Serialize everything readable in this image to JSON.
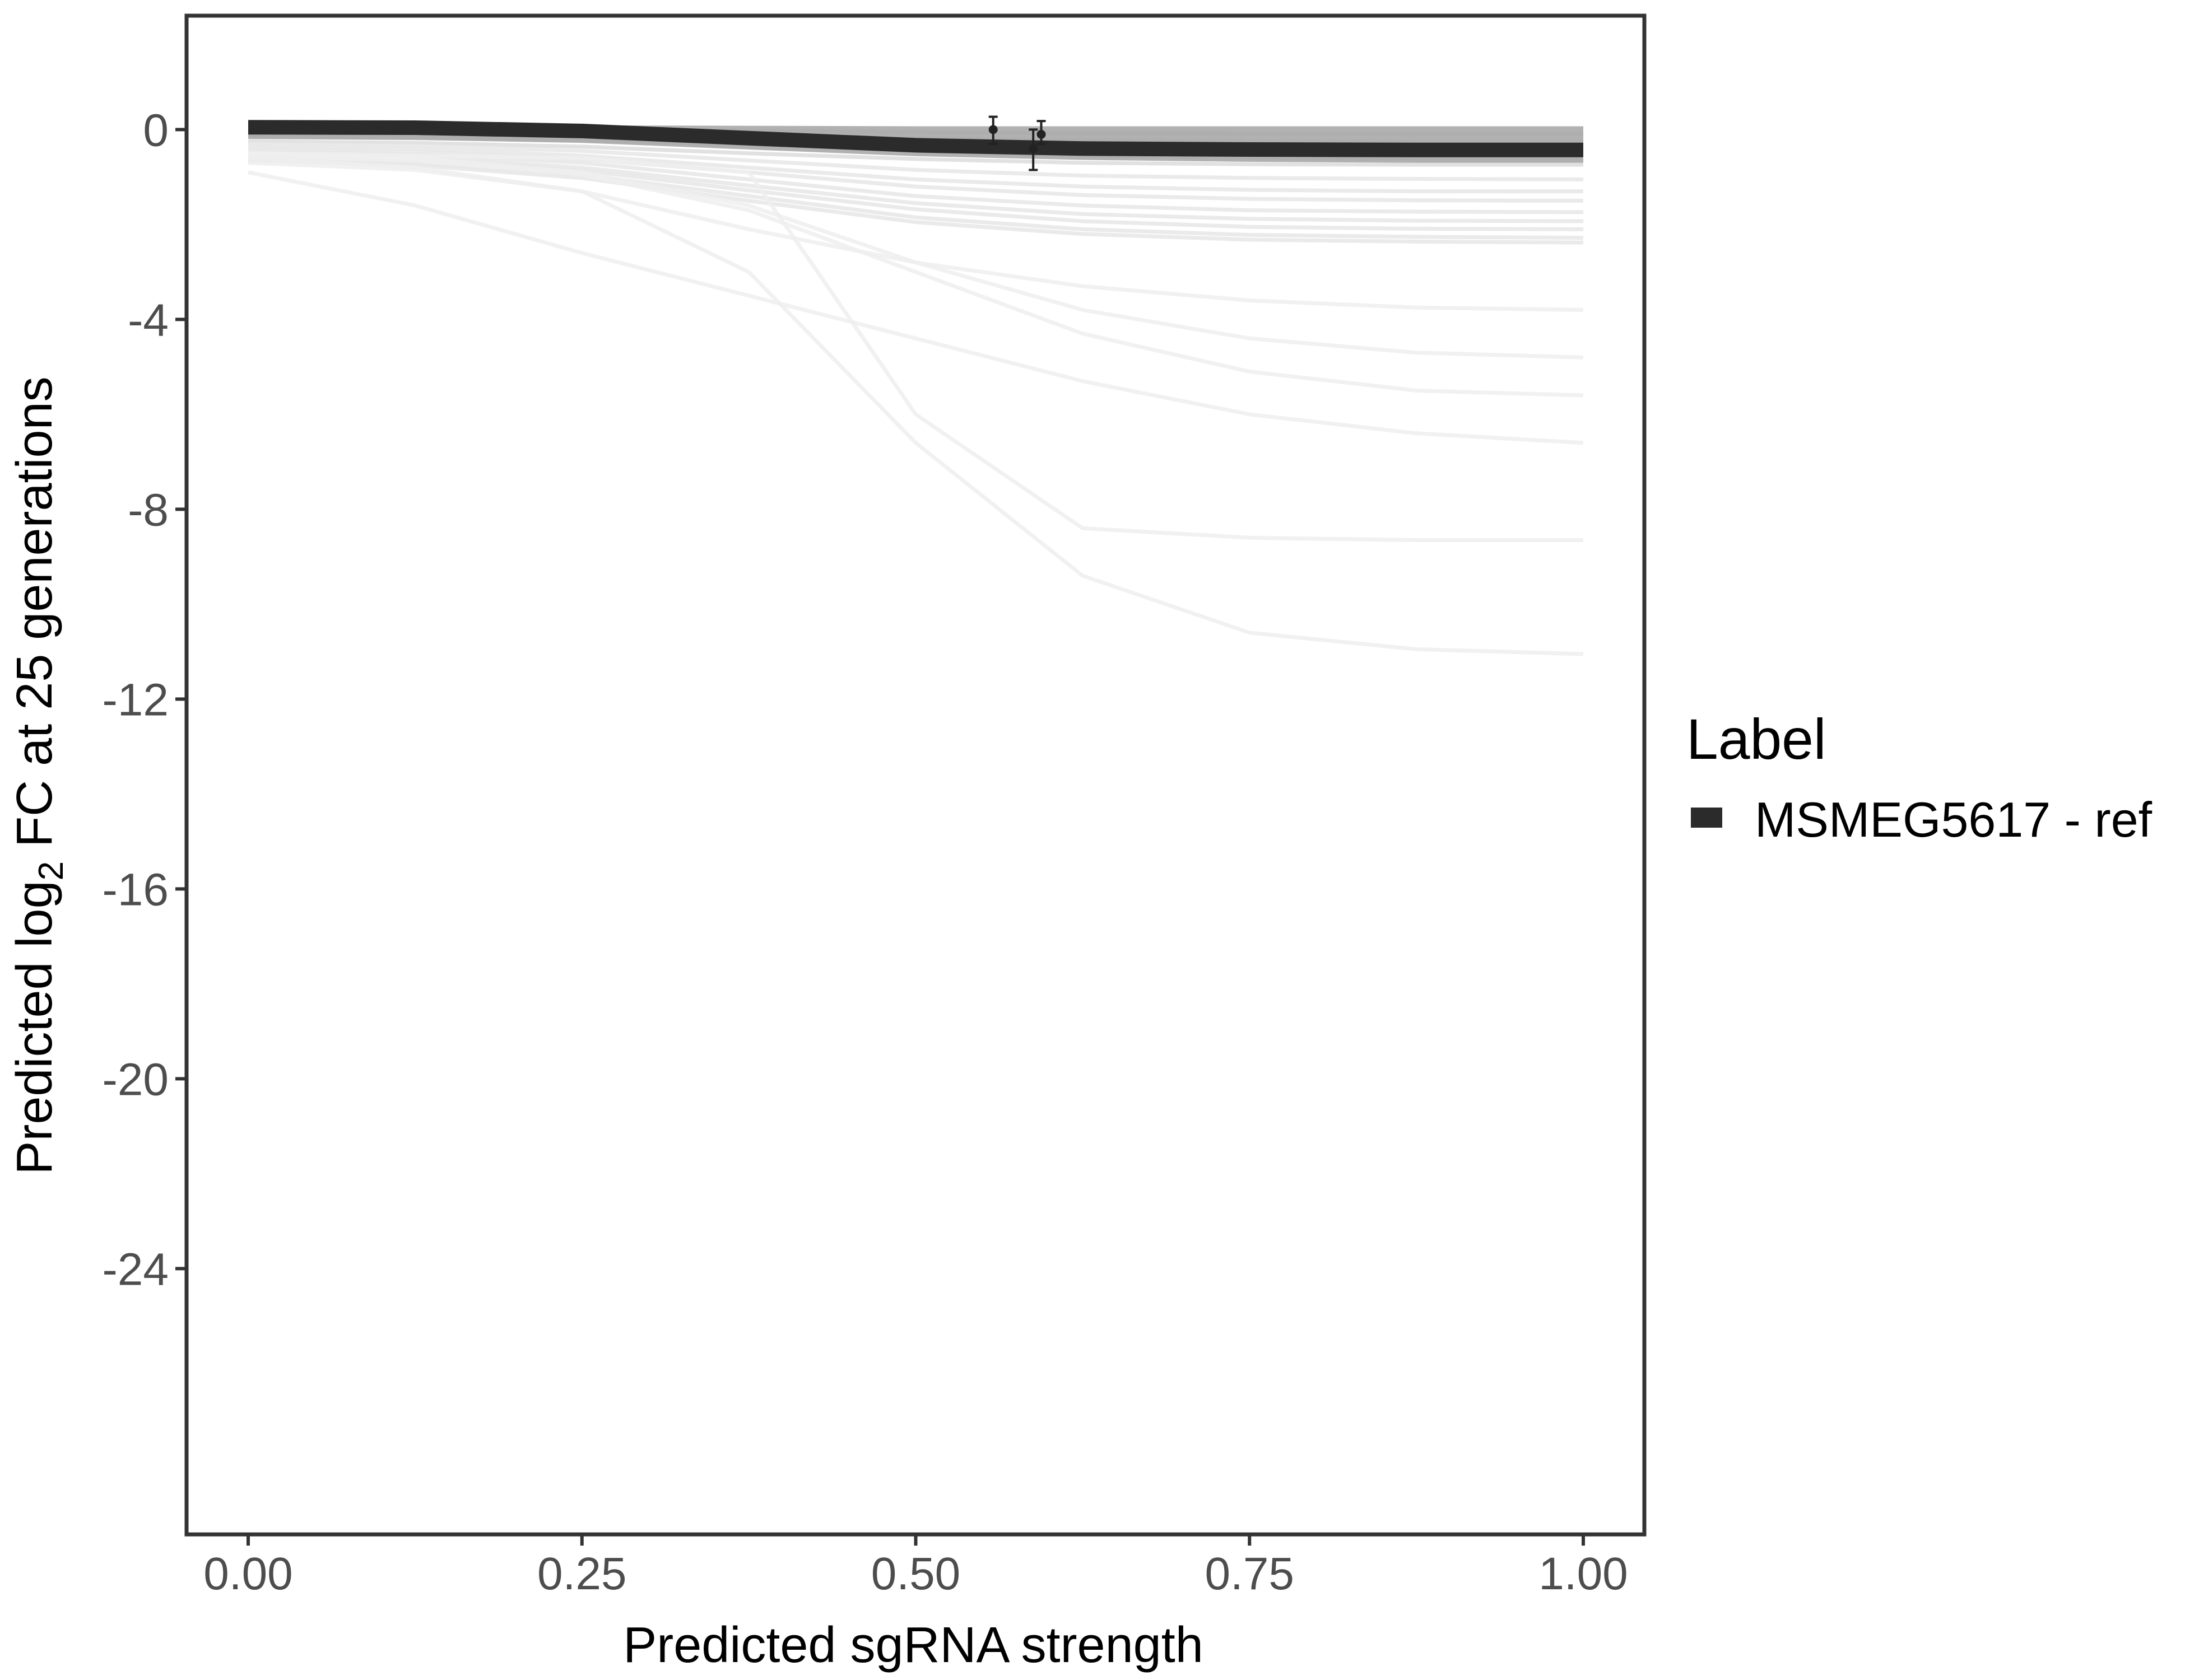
{
  "chart_data": {
    "type": "line",
    "title": "",
    "xlabel": "Predicted sgRNA strength",
    "ylabel": {
      "prefix": "Predicted  log",
      "subscript": "2",
      "suffix": " FC at 25 generations"
    },
    "xlim": [
      -0.1,
      2.085
    ],
    "ylim": [
      -29.6,
      2.4
    ],
    "x_ticks": [
      0,
      0.25,
      0.5,
      0.75,
      1.0
    ],
    "x_tick_labels": [
      "0.00",
      "0.25",
      "0.50",
      "0.75",
      "1.00"
    ],
    "y_ticks": [
      0,
      -4,
      -8,
      -12,
      -16,
      -20,
      -24
    ],
    "y_tick_labels": [
      "0",
      "-4",
      "-8",
      "-12",
      "-16",
      "-20",
      "-24"
    ],
    "grid": false,
    "legend": {
      "title": "Label",
      "position": "right",
      "entries": [
        {
          "name": "MSMEG5617 - ref",
          "color": "#2b2b2b"
        }
      ]
    },
    "series": [
      {
        "name": "MSMEG5617 - ref",
        "role": "highlight",
        "color": "#2b2b2b",
        "x": [
          0.0,
          0.125,
          0.25,
          0.375,
          0.5,
          0.625,
          0.75,
          0.875,
          1.0
        ],
        "y": [
          0.05,
          0.04,
          -0.03,
          -0.18,
          -0.33,
          -0.4,
          -0.42,
          -0.43,
          -0.43
        ]
      },
      {
        "role": "background",
        "color": "#dcdcdc",
        "x": [
          0.0,
          0.125,
          0.25,
          0.375,
          0.5,
          0.625,
          0.75,
          0.875,
          1.0
        ],
        "y": [
          0.05,
          0.04,
          0.02,
          -0.02,
          -0.06,
          -0.08,
          -0.09,
          -0.09,
          -0.09
        ]
      },
      {
        "role": "background",
        "color": "#dcdcdc",
        "x": [
          0.0,
          0.125,
          0.25,
          0.375,
          0.5,
          0.625,
          0.75,
          0.875,
          1.0
        ],
        "y": [
          -0.02,
          -0.03,
          -0.06,
          -0.12,
          -0.18,
          -0.22,
          -0.24,
          -0.25,
          -0.25
        ]
      },
      {
        "role": "background",
        "color": "#dcdcdc",
        "x": [
          0.0,
          0.125,
          0.25,
          0.375,
          0.5,
          0.625,
          0.75,
          0.875,
          1.0
        ],
        "y": [
          -0.08,
          -0.1,
          -0.16,
          -0.3,
          -0.45,
          -0.55,
          -0.6,
          -0.62,
          -0.62
        ]
      },
      {
        "role": "background",
        "color": "#dcdcdc",
        "x": [
          0.0,
          0.125,
          0.25,
          0.375,
          0.5,
          0.625,
          0.75,
          0.875,
          1.0
        ],
        "y": [
          -0.15,
          -0.17,
          -0.22,
          -0.32,
          -0.42,
          -0.47,
          -0.5,
          -0.5,
          -0.5
        ]
      },
      {
        "role": "background",
        "color": "#dcdcdc",
        "x": [
          0.0,
          0.125,
          0.25,
          0.375,
          0.5,
          0.625,
          0.75,
          0.875,
          1.0
        ],
        "y": [
          -0.25,
          -0.28,
          -0.36,
          -0.5,
          -0.62,
          -0.7,
          -0.73,
          -0.74,
          -0.74
        ]
      },
      {
        "role": "background",
        "color": "#e6e6e6",
        "x": [
          0.0,
          0.125,
          0.25,
          0.375,
          0.5,
          0.625,
          0.75,
          0.875,
          1.0
        ],
        "y": [
          -0.3,
          -0.34,
          -0.45,
          -0.65,
          -0.85,
          -0.97,
          -1.02,
          -1.04,
          -1.05
        ]
      },
      {
        "role": "background",
        "color": "#e6e6e6",
        "x": [
          0.0,
          0.125,
          0.25,
          0.375,
          0.5,
          0.625,
          0.75,
          0.875,
          1.0
        ],
        "y": [
          -0.35,
          -0.4,
          -0.55,
          -0.8,
          -1.05,
          -1.2,
          -1.27,
          -1.3,
          -1.3
        ]
      },
      {
        "role": "background",
        "color": "#e6e6e6",
        "x": [
          0.0,
          0.125,
          0.25,
          0.375,
          0.5,
          0.625,
          0.75,
          0.875,
          1.0
        ],
        "y": [
          -0.4,
          -0.46,
          -0.62,
          -0.9,
          -1.2,
          -1.38,
          -1.46,
          -1.49,
          -1.5
        ]
      },
      {
        "role": "background",
        "color": "#e6e6e6",
        "x": [
          0.0,
          0.125,
          0.25,
          0.375,
          0.5,
          0.625,
          0.75,
          0.875,
          1.0
        ],
        "y": [
          -0.45,
          -0.52,
          -0.7,
          -1.05,
          -1.4,
          -1.6,
          -1.7,
          -1.73,
          -1.74
        ]
      },
      {
        "role": "background",
        "color": "#e6e6e6",
        "x": [
          0.0,
          0.125,
          0.25,
          0.375,
          0.5,
          0.625,
          0.75,
          0.875,
          1.0
        ],
        "y": [
          -0.5,
          -0.58,
          -0.8,
          -1.18,
          -1.55,
          -1.78,
          -1.88,
          -1.92,
          -1.93
        ]
      },
      {
        "role": "background",
        "color": "#e6e6e6",
        "x": [
          0.0,
          0.125,
          0.25,
          0.375,
          0.5,
          0.625,
          0.75,
          0.875,
          1.0
        ],
        "y": [
          -0.55,
          -0.63,
          -0.86,
          -1.28,
          -1.68,
          -1.93,
          -2.05,
          -2.09,
          -2.1
        ]
      },
      {
        "role": "background",
        "color": "#e6e6e6",
        "x": [
          0.0,
          0.125,
          0.25,
          0.375,
          0.5,
          0.625,
          0.75,
          0.875,
          1.0
        ],
        "y": [
          -0.6,
          -0.7,
          -0.95,
          -1.4,
          -1.85,
          -2.1,
          -2.22,
          -2.26,
          -2.28
        ]
      },
      {
        "role": "background",
        "color": "#e6e6e6",
        "x": [
          0.0,
          0.125,
          0.25,
          0.375,
          0.5,
          0.625,
          0.75,
          0.875,
          1.0
        ],
        "y": [
          -0.65,
          -0.75,
          -1.02,
          -1.5,
          -1.95,
          -2.2,
          -2.32,
          -2.36,
          -2.38
        ]
      },
      {
        "role": "background",
        "color": "#eeeeee",
        "x": [
          0.0,
          0.125,
          0.25,
          0.375,
          0.5,
          0.625,
          0.75,
          0.875,
          1.0
        ],
        "y": [
          -0.6,
          -0.8,
          -1.3,
          -2.1,
          -2.8,
          -3.3,
          -3.6,
          -3.75,
          -3.8
        ]
      },
      {
        "role": "background",
        "color": "#eeeeee",
        "x": [
          0.0,
          0.125,
          0.25,
          0.375,
          0.5,
          0.625,
          0.75,
          0.875,
          1.0
        ],
        "y": [
          -0.5,
          -0.6,
          -0.9,
          -1.6,
          -2.8,
          -3.8,
          -4.4,
          -4.7,
          -4.8
        ]
      },
      {
        "role": "background",
        "color": "#eeeeee",
        "x": [
          0.0,
          0.125,
          0.25,
          0.375,
          0.5,
          0.625,
          0.75,
          0.875,
          1.0
        ],
        "y": [
          -0.55,
          -0.65,
          -0.95,
          -1.7,
          -3.0,
          -4.3,
          -5.1,
          -5.5,
          -5.6
        ]
      },
      {
        "role": "background",
        "color": "#eeeeee",
        "x": [
          0.0,
          0.125,
          0.25,
          0.375,
          0.5,
          0.625,
          0.75,
          0.875,
          1.0
        ],
        "y": [
          -0.9,
          -1.6,
          -2.6,
          -3.5,
          -4.4,
          -5.3,
          -6.0,
          -6.4,
          -6.6
        ]
      },
      {
        "role": "background",
        "color": "#eeeeee",
        "x": [
          0.0,
          0.125,
          0.25,
          0.375,
          0.5,
          0.625,
          0.75,
          0.875,
          1.0
        ],
        "y": [
          -0.5,
          -0.55,
          -0.6,
          -0.9,
          -6.0,
          -8.4,
          -8.6,
          -8.65,
          -8.65
        ]
      },
      {
        "role": "background",
        "color": "#eeeeee",
        "x": [
          0.0,
          0.125,
          0.25,
          0.375,
          0.5,
          0.625,
          0.75,
          0.875,
          1.0
        ],
        "y": [
          -0.7,
          -0.85,
          -1.3,
          -3.0,
          -6.6,
          -9.4,
          -10.6,
          -10.95,
          -11.05
        ]
      }
    ],
    "ribbon": {
      "color": "#a8a8a8",
      "x": [
        0.0,
        0.125,
        0.25,
        0.375,
        0.5,
        0.625,
        0.75,
        0.875,
        1.0
      ],
      "y_upper": [
        0.1,
        0.1,
        0.09,
        0.08,
        0.07,
        0.07,
        0.07,
        0.07,
        0.07
      ],
      "y_lower": [
        -0.2,
        -0.22,
        -0.28,
        -0.42,
        -0.56,
        -0.64,
        -0.68,
        -0.7,
        -0.7
      ]
    },
    "points": [
      {
        "x": 0.558,
        "y": 0.0,
        "ymin": -0.3,
        "ymax": 0.27
      },
      {
        "x": 0.588,
        "y": -0.4,
        "ymin": -0.85,
        "ymax": 0.0
      },
      {
        "x": 0.594,
        "y": -0.1,
        "ymin": -0.3,
        "ymax": 0.18
      }
    ]
  }
}
